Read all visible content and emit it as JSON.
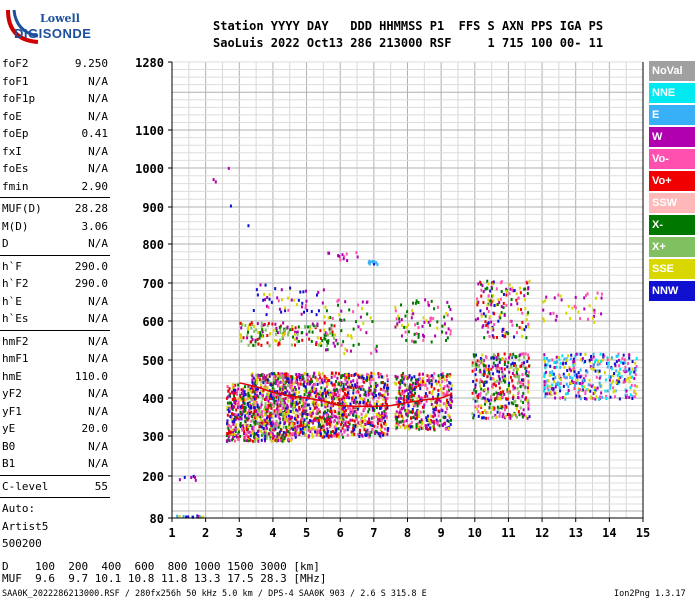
{
  "logo": {
    "line1": "Lowell",
    "line2": "DIGISONDE"
  },
  "header": {
    "labels": "Station YYYY DAY   DDD HHMMSS P1  FFS S AXN PPS IGA PS",
    "values": "SaoLuis 2022 Oct13 286 213000 RSF     1 715 100 00- 11"
  },
  "params_group1": [
    {
      "k": "foF2",
      "v": "9.250"
    },
    {
      "k": "foF1",
      "v": "N/A"
    },
    {
      "k": "foF1p",
      "v": "N/A"
    },
    {
      "k": "foE",
      "v": "N/A"
    },
    {
      "k": "foEp",
      "v": "0.41"
    },
    {
      "k": "fxI",
      "v": "N/A"
    },
    {
      "k": "foEs",
      "v": "N/A"
    },
    {
      "k": "fmin",
      "v": "2.90"
    }
  ],
  "params_group2": [
    {
      "k": "MUF(D)",
      "v": "28.28"
    },
    {
      "k": "M(D)",
      "v": "3.06"
    },
    {
      "k": "D",
      "v": "N/A"
    }
  ],
  "params_group3": [
    {
      "k": "h`F",
      "v": "290.0"
    },
    {
      "k": "h`F2",
      "v": "290.0"
    },
    {
      "k": "h`E",
      "v": "N/A"
    },
    {
      "k": "h`Es",
      "v": "N/A"
    }
  ],
  "params_group4": [
    {
      "k": "hmF2",
      "v": "N/A"
    },
    {
      "k": "hmF1",
      "v": "N/A"
    },
    {
      "k": "hmE",
      "v": "110.0"
    },
    {
      "k": "yF2",
      "v": "N/A"
    },
    {
      "k": "yF1",
      "v": "N/A"
    },
    {
      "k": "yE",
      "v": "20.0"
    },
    {
      "k": "B0",
      "v": "N/A"
    },
    {
      "k": "B1",
      "v": "N/A"
    }
  ],
  "params_group5": [
    {
      "k": "C-level",
      "v": "55"
    }
  ],
  "autoscale": [
    "Auto:",
    "Artist5",
    "500200"
  ],
  "footer": {
    "d_row": "D    100  200  400  600  800 1000 1500 3000 [km]",
    "muf_row": "MUF  9.6  9.7 10.1 10.8 11.8 13.3 17.5 28.3 [MHz]",
    "info": "SAA0K_2022286213000.RSF / 280fx256h 50 kHz 5.0 km / DPS-4 SAA0K 903 / 2.6 S 315.8 E",
    "version": "Ion2Png 1.3.17"
  },
  "legend": [
    {
      "label": "NoVal",
      "color": "#a0a0a0"
    },
    {
      "label": "NNE",
      "color": "#00e8f0"
    },
    {
      "label": "E",
      "color": "#38b0f8"
    },
    {
      "label": "W",
      "color": "#b000b0"
    },
    {
      "label": "Vo-",
      "color": "#ff50b0"
    },
    {
      "label": "Vo+",
      "color": "#f00000"
    },
    {
      "label": "SSW",
      "color": "#ffb8b8"
    },
    {
      "label": "X-",
      "color": "#007800"
    },
    {
      "label": "X+",
      "color": "#80c060"
    },
    {
      "label": "SSE",
      "color": "#d8d800"
    },
    {
      "label": "NNW",
      "color": "#1010d0"
    }
  ],
  "chart_data": {
    "type": "scatter",
    "title": "",
    "xlabel": "",
    "ylabel": "",
    "xlim": [
      1,
      15
    ],
    "ylim": [
      80,
      1280
    ],
    "x_ticks": [
      1,
      2,
      3,
      4,
      5,
      6,
      7,
      8,
      9,
      10,
      11,
      12,
      13,
      14,
      15
    ],
    "y_ticks": [
      80,
      200,
      300,
      400,
      500,
      600,
      700,
      800,
      900,
      1000,
      1100,
      1280
    ],
    "grid": true,
    "trace": {
      "name": "",
      "color": "#e00000",
      "x": [
        3.0,
        3.5,
        4.0,
        4.5,
        5.0,
        5.5,
        6.0,
        6.5,
        7.0,
        7.5,
        8.0,
        8.5,
        9.0,
        9.3
      ],
      "y": [
        440,
        430,
        415,
        405,
        400,
        392,
        380,
        378,
        378,
        380,
        388,
        395,
        400,
        410
      ]
    },
    "clusters": [
      {
        "x": [
          1.05,
          1.9
        ],
        "y": [
          80,
          90
        ],
        "n": 40,
        "colors": [
          "#38b0f8",
          "#1010d0",
          "#d8d800",
          "#b000b0"
        ]
      },
      {
        "x": [
          1.2,
          1.9
        ],
        "y": [
          190,
          205
        ],
        "n": 6,
        "colors": [
          "#1010d0",
          "#b000b0"
        ]
      },
      {
        "x": [
          2.6,
          3.3
        ],
        "y": [
          290,
          440
        ],
        "n": 260,
        "colors": [
          "#b000b0",
          "#f00000",
          "#1010d0",
          "#ff50b0",
          "#d8d800",
          "#007800"
        ]
      },
      {
        "x": [
          3.3,
          4.6
        ],
        "y": [
          290,
          470
        ],
        "n": 700,
        "colors": [
          "#b000b0",
          "#f00000",
          "#1010d0",
          "#ff50b0",
          "#007800",
          "#d8d800",
          "#80c060"
        ]
      },
      {
        "x": [
          4.6,
          6.0
        ],
        "y": [
          300,
          470
        ],
        "n": 520,
        "colors": [
          "#b000b0",
          "#f00000",
          "#1010d0",
          "#ff50b0",
          "#007800",
          "#d8d800"
        ]
      },
      {
        "x": [
          6.0,
          7.4
        ],
        "y": [
          300,
          470
        ],
        "n": 450,
        "colors": [
          "#f00000",
          "#b000b0",
          "#d8d800",
          "#007800",
          "#ff50b0",
          "#1010d0"
        ]
      },
      {
        "x": [
          7.6,
          9.3
        ],
        "y": [
          320,
          470
        ],
        "n": 420,
        "colors": [
          "#f00000",
          "#b000b0",
          "#d8d800",
          "#007800",
          "#ff50b0",
          "#1010d0"
        ]
      },
      {
        "x": [
          9.9,
          11.6
        ],
        "y": [
          350,
          520
        ],
        "n": 380,
        "colors": [
          "#d8d800",
          "#007800",
          "#b000b0",
          "#f00000",
          "#ff50b0",
          "#80c060",
          "#1010d0"
        ]
      },
      {
        "x": [
          12.0,
          14.8
        ],
        "y": [
          400,
          520
        ],
        "n": 360,
        "colors": [
          "#00e8f0",
          "#b000b0",
          "#ff50b0",
          "#38b0f8",
          "#1010d0",
          "#d8d800"
        ]
      },
      {
        "x": [
          3.0,
          5.8
        ],
        "y": [
          540,
          600
        ],
        "n": 160,
        "colors": [
          "#d8d800",
          "#007800",
          "#b000b0",
          "#80c060",
          "#f00000"
        ]
      },
      {
        "x": [
          3.4,
          5.5
        ],
        "y": [
          620,
          700
        ],
        "n": 50,
        "colors": [
          "#b000b0",
          "#1010d0",
          "#ff50b0",
          "#d8d800"
        ]
      },
      {
        "x": [
          5.5,
          7.2
        ],
        "y": [
          520,
          660
        ],
        "n": 60,
        "colors": [
          "#d8d800",
          "#b000b0",
          "#ff50b0",
          "#007800"
        ]
      },
      {
        "x": [
          7.6,
          9.3
        ],
        "y": [
          550,
          660
        ],
        "n": 80,
        "colors": [
          "#d8d800",
          "#b000b0",
          "#ff50b0",
          "#007800"
        ]
      },
      {
        "x": [
          10.0,
          11.6
        ],
        "y": [
          560,
          710
        ],
        "n": 150,
        "colors": [
          "#ff50b0",
          "#b000b0",
          "#f00000",
          "#007800",
          "#d8d800",
          "#1010d0"
        ]
      },
      {
        "x": [
          12.0,
          13.8
        ],
        "y": [
          600,
          680
        ],
        "n": 40,
        "colors": [
          "#ff50b0",
          "#b000b0",
          "#d8d800"
        ]
      },
      {
        "x": [
          6.8,
          7.1
        ],
        "y": [
          750,
          760
        ],
        "n": 10,
        "colors": [
          "#38b0f8",
          "#1010d0"
        ]
      },
      {
        "x": [
          5.5,
          6.5
        ],
        "y": [
          760,
          790
        ],
        "n": 12,
        "colors": [
          "#b000b0",
          "#ff50b0"
        ]
      },
      {
        "x": [
          1.2,
          3.5
        ],
        "y": [
          800,
          1050
        ],
        "n": 5,
        "colors": [
          "#1010d0",
          "#b000b0"
        ]
      }
    ]
  }
}
